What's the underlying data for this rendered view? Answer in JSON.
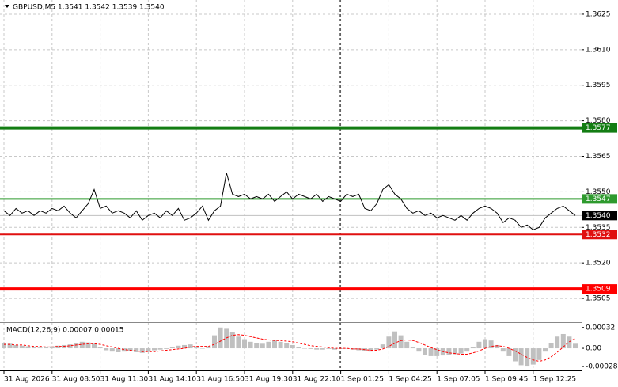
{
  "chart_data": [
    {
      "type": "line",
      "title": "GBPUSD,M5  1.3541 1.3542 1.3539 1.3540",
      "color": "#000000",
      "grid": true,
      "categories": [
        "31 Aug 2026",
        null,
        null,
        null,
        null,
        null,
        null,
        null,
        "31 Aug 08:50",
        null,
        null,
        null,
        null,
        null,
        null,
        null,
        "31 Aug 11:30",
        null,
        null,
        null,
        null,
        null,
        null,
        null,
        "31 Aug 14:10",
        null,
        null,
        null,
        null,
        null,
        null,
        null,
        "31 Aug 16:50",
        null,
        null,
        null,
        null,
        null,
        null,
        null,
        "31 Aug 19:30",
        null,
        null,
        null,
        null,
        null,
        null,
        null,
        "31 Aug 22:10",
        null,
        null,
        null,
        null,
        null,
        null,
        null,
        "1 Sep 01:25",
        null,
        null,
        null,
        null,
        null,
        null,
        null,
        "1 Sep 04:25",
        null,
        null,
        null,
        null,
        null,
        null,
        null,
        "1 Sep 07:05",
        null,
        null,
        null,
        null,
        null,
        null,
        null,
        "1 Sep 09:45",
        null,
        null,
        null,
        null,
        null,
        null,
        null,
        "1 Sep 12:25",
        null,
        null,
        null,
        null,
        null,
        null,
        null
      ],
      "values": [
        1.3542,
        1.354,
        1.3543,
        1.3541,
        1.3542,
        1.354,
        1.3542,
        1.3541,
        1.3543,
        1.3542,
        1.3544,
        1.3541,
        1.3539,
        1.3542,
        1.3545,
        1.3551,
        1.3543,
        1.3544,
        1.3541,
        1.3542,
        1.3541,
        1.3539,
        1.3542,
        1.3538,
        1.354,
        1.3541,
        1.3539,
        1.3542,
        1.354,
        1.3543,
        1.3538,
        1.3539,
        1.3541,
        1.3544,
        1.3538,
        1.3542,
        1.3544,
        1.3558,
        1.3549,
        1.3548,
        1.3549,
        1.3547,
        1.3548,
        1.3547,
        1.3549,
        1.3546,
        1.3548,
        1.355,
        1.3547,
        1.3549,
        1.3548,
        1.3547,
        1.3549,
        1.3546,
        1.3548,
        1.3547,
        1.3546,
        1.3549,
        1.3548,
        1.3549,
        1.3543,
        1.3542,
        1.3545,
        1.3551,
        1.3553,
        1.3549,
        1.3547,
        1.3543,
        1.3541,
        1.3542,
        1.354,
        1.3541,
        1.3539,
        1.354,
        1.3539,
        1.3538,
        1.354,
        1.3538,
        1.3541,
        1.3543,
        1.3544,
        1.3543,
        1.3541,
        1.3537,
        1.3539,
        1.3538,
        1.3535,
        1.3536,
        1.3534,
        1.3535,
        1.3539,
        1.3541,
        1.3543,
        1.3544,
        1.3542,
        1.354
      ],
      "ylim": [
        1.3495,
        1.3631
      ],
      "yticks": [
        1.3625,
        {
          "value": 1.361,
          "label": "1.3610"
        },
        1.3595,
        {
          "value": 1.358,
          "label": "1.3580"
        },
        1.3565,
        {
          "value": 1.355,
          "label": "1.3550"
        },
        1.3535,
        {
          "value": 1.352,
          "label": "1.3520"
        },
        1.3505
      ],
      "levels": [
        {
          "value": 1.3577,
          "color": "#137d13",
          "thick": true
        },
        {
          "value": 1.3547,
          "color": "#2e9a2e"
        },
        {
          "value": 1.3532,
          "color": "#e01010"
        },
        {
          "value": 1.3509,
          "color": "#ff0000",
          "thick": true
        },
        {
          "value": 1.354,
          "label": "1.3540",
          "color": "#c0c0c0",
          "box": "#000000"
        }
      ]
    },
    {
      "type": "macd",
      "title": "MACD(12,26,9) 0.00007 0.00015",
      "ylim": [
        -0.00034,
        0.00039
      ],
      "yticks": [
        0.00032,
        {
          "value": 0,
          "label": "0.00"
        },
        -0.00028
      ],
      "series": [
        {
          "type": "bar",
          "color": "#c0c0c0",
          "values": [
            8e-05,
            7e-05,
            5e-05,
            4e-05,
            3e-05,
            2e-05,
            1e-05,
            2e-05,
            3e-05,
            4e-05,
            5e-05,
            6e-05,
            8e-05,
            0.0001,
            9e-05,
            7e-05,
            2e-05,
            -3e-05,
            -5e-05,
            -6e-05,
            -5e-05,
            -4e-05,
            -6e-05,
            -7e-05,
            -5e-05,
            -3e-05,
            -2e-05,
            -1e-05,
            2e-05,
            4e-05,
            5e-05,
            6e-05,
            3e-05,
            0,
            3e-05,
            0.0002,
            0.00032,
            0.0003,
            0.00025,
            0.00018,
            0.00014,
            0.0001,
            8e-05,
            7e-05,
            0.0001,
            0.00012,
            0.0001,
            8e-05,
            5e-05,
            2e-05,
            0,
            -1e-05,
            -2e-05,
            -2e-05,
            -1e-05,
            -2e-05,
            -1e-05,
            0,
            -2e-05,
            -3e-05,
            -4e-05,
            -5e-05,
            -2e-05,
            6e-05,
            0.00018,
            0.00026,
            0.0002,
            0.0001,
            2e-05,
            -5e-05,
            -0.0001,
            -0.00012,
            -0.00012,
            -0.00011,
            -0.0001,
            -9e-05,
            -8e-05,
            -5e-05,
            2e-05,
            0.0001,
            0.00014,
            0.00012,
            5e-05,
            -5e-05,
            -0.00012,
            -0.0002,
            -0.00026,
            -0.00028,
            -0.00025,
            -0.00018,
            -5e-05,
            8e-05,
            0.00018,
            0.00022,
            0.00018,
            7e-05
          ]
        },
        {
          "type": "line",
          "color": "#ff0000",
          "dash": true,
          "values": [
            6e-05,
            6e-05,
            5e-05,
            5e-05,
            4e-05,
            3e-05,
            3e-05,
            2e-05,
            2e-05,
            3e-05,
            3e-05,
            4e-05,
            5e-05,
            6e-05,
            7e-05,
            7e-05,
            6e-05,
            4e-05,
            2e-05,
            0,
            -2e-05,
            -3e-05,
            -4e-05,
            -5e-05,
            -5e-05,
            -5e-05,
            -4e-05,
            -3e-05,
            -2e-05,
            -1e-05,
            0,
            2e-05,
            3e-05,
            3e-05,
            3e-05,
            6e-05,
            0.00011,
            0.00016,
            0.0002,
            0.00021,
            0.0002,
            0.00018,
            0.00016,
            0.00014,
            0.00013,
            0.00012,
            0.00012,
            0.00011,
            0.0001,
            8e-05,
            6e-05,
            4e-05,
            3e-05,
            2e-05,
            1e-05,
            0,
            0,
            0,
            -1e-05,
            -1e-05,
            -2e-05,
            -3e-05,
            -3e-05,
            -1e-05,
            3e-05,
            8e-05,
            0.00012,
            0.00013,
            0.00012,
            9e-05,
            5e-05,
            1e-05,
            -2e-05,
            -5e-05,
            -7e-05,
            -8e-05,
            -9e-05,
            -9e-05,
            -7e-05,
            -4e-05,
            0,
            3e-05,
            4e-05,
            3e-05,
            0,
            -4e-05,
            -9e-05,
            -0.00014,
            -0.00018,
            -0.0002,
            -0.00018,
            -0.00013,
            -6e-05,
            2e-05,
            0.0001,
            0.00015
          ]
        }
      ]
    }
  ]
}
